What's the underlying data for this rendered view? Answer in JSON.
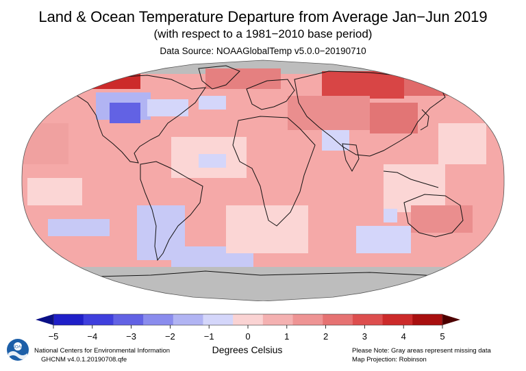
{
  "header": {
    "title": "Land & Ocean Temperature Departure from Average Jan−Jun 2019",
    "subtitle": "(with respect to a 1981−2010 base period)",
    "source": "Data Source: NOAAGlobalTemp v5.0.0−20190710"
  },
  "legend": {
    "ticks": [
      "−5",
      "−4",
      "−3",
      "−2",
      "−1",
      "0",
      "1",
      "2",
      "3",
      "4",
      "5"
    ],
    "units": "Degrees Celsius",
    "colors": [
      "#0a0f86",
      "#1f1fc8",
      "#3f3fdd",
      "#6262e4",
      "#8a8ced",
      "#b1b4f3",
      "#d4d6fa",
      "#fad3d3",
      "#f4b1b1",
      "#ee9494",
      "#e67272",
      "#dd4e4e",
      "#cc2a2a",
      "#a80f0f",
      "#4d0000"
    ],
    "missing_color": "#bdbdbd"
  },
  "map": {
    "projection": "Robinson",
    "ocean_base_color": "#f5a9a8",
    "missing_color": "#bdbdbd"
  },
  "footer": {
    "left_line1": "National Centers for Environmental Information",
    "left_line2": "GHCNM v4.0.1.20190708.qfe",
    "right_line1": "Please Note: Gray areas represent missing data",
    "right_line2": "Map Projection: Robinson"
  },
  "logo": {
    "text": "NOAA"
  }
}
